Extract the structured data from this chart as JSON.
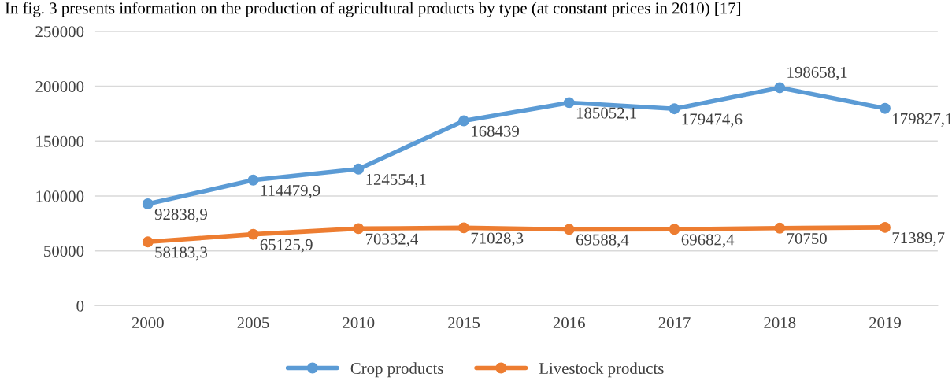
{
  "chart_data": {
    "type": "line",
    "title": "In fig. 3 presents information on the production of agricultural products by type (at constant prices in 2010) [17]",
    "categories": [
      "2000",
      "2005",
      "2010",
      "2015",
      "2016",
      "2017",
      "2018",
      "2019"
    ],
    "series": [
      {
        "name": "Crop products",
        "color": "#5b9bd5",
        "values": [
          92838.9,
          114479.9,
          124554.1,
          168439,
          185052.1,
          179474.6,
          198658.1,
          179827.1
        ],
        "value_labels": [
          "92838,9",
          "114479,9",
          "124554,1",
          "168439",
          "185052,1",
          "179474,6",
          "198658,1",
          "179827,1"
        ]
      },
      {
        "name": "Livestock products",
        "color": "#ed7d31",
        "values": [
          58183.3,
          65125.9,
          70332.4,
          71028.3,
          69588.4,
          69682.4,
          70750,
          71389.7
        ],
        "value_labels": [
          "58183,3",
          "65125,9",
          "70332,4",
          "71028,3",
          "69588,4",
          "69682,4",
          "70750",
          "71389,7"
        ]
      }
    ],
    "ylim": [
      0,
      250000
    ],
    "yticks": [
      0,
      50000,
      100000,
      150000,
      200000,
      250000
    ],
    "grid": "y",
    "legend": "bottom",
    "marker": "circle",
    "line_style": "solid"
  }
}
